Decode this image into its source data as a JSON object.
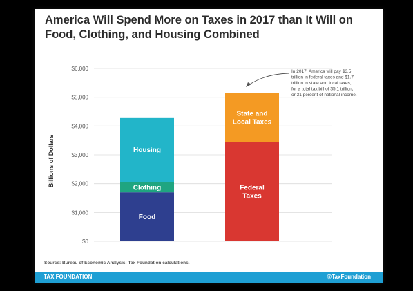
{
  "colors": {
    "footer": "#1e9fd4",
    "food": "#2e3f8f",
    "clothing": "#1fa580",
    "housing": "#22b5c9",
    "federal": "#d93731",
    "state": "#f49a23",
    "grid": "#dcdcdc",
    "axis_text": "#555555"
  },
  "footer": {
    "left": "TAX FOUNDATION",
    "right": "@TaxFoundation"
  },
  "source": "Source:  Bureau of Economic Analysis; Tax Foundation calculations.",
  "chart_data": {
    "type": "bar",
    "stacked": true,
    "title": "America Will Spend More on Taxes in 2017 than It Will on Food, Clothing, and Housing Combined",
    "ylabel": "Billions of Dollars",
    "xlabel": "",
    "ylim": [
      0,
      6000
    ],
    "yticks": [
      0,
      1000,
      2000,
      3000,
      4000,
      5000,
      6000
    ],
    "ytick_labels": [
      "$0",
      "$1,000",
      "$2,000",
      "$3,000",
      "$4,000",
      "$5,000",
      "$6,000"
    ],
    "grid": true,
    "bars": [
      {
        "segments": [
          {
            "label": "Food",
            "value": 1700,
            "color_key": "food"
          },
          {
            "label": "Clothing",
            "value": 350,
            "color_key": "clothing"
          },
          {
            "label": "Housing",
            "value": 2250,
            "color_key": "housing"
          }
        ]
      },
      {
        "segments": [
          {
            "label": "Federal\nTaxes",
            "value": 3450,
            "color_key": "federal"
          },
          {
            "label": "State and\nLocal Taxes",
            "value": 1700,
            "color_key": "state"
          }
        ]
      }
    ],
    "annotation": "In 2017, America will pay $3.5\ntrillion in federal taxes and $1.7\ntrillion in state and local taxes,\nfor a total tax bill of $5.1 trillion,\nor 31 percent of national income."
  }
}
